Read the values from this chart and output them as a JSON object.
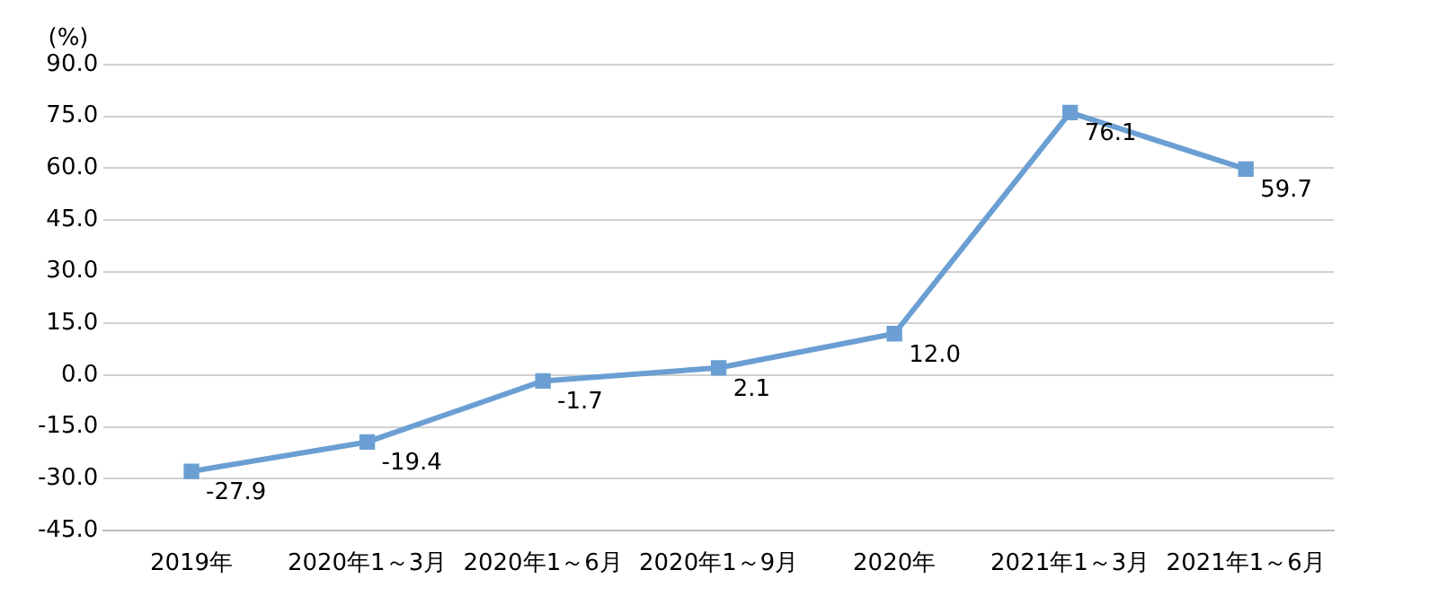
{
  "chart_data": {
    "type": "line",
    "ylabel": "(%)",
    "categories": [
      "2019年",
      "2020年1～3月",
      "2020年1～6月",
      "2020年1～9月",
      "2020年",
      "2021年1～3月",
      "2021年1～6月"
    ],
    "series": [
      {
        "color": "#6b9fd3",
        "values": [
          -27.9,
          -19.4,
          -1.7,
          2.1,
          12.0,
          76.1,
          59.7
        ],
        "value_labels": [
          "-27.9",
          "-19.4",
          "-1.7",
          "2.1",
          "12.0",
          "76.1",
          "59.7"
        ]
      }
    ],
    "ylim": [
      -45,
      90
    ],
    "yticks": [
      {
        "value": -45,
        "label": "-45.0"
      },
      {
        "value": -30,
        "label": "-30.0"
      },
      {
        "value": -15,
        "label": "-15.0"
      },
      {
        "value": 0,
        "label": "0.0"
      },
      {
        "value": 15,
        "label": "15.0"
      },
      {
        "value": 30,
        "label": "30.0"
      },
      {
        "value": 45,
        "label": "45.0"
      },
      {
        "value": 60,
        "label": "60.0"
      },
      {
        "value": 75,
        "label": "75.0"
      },
      {
        "value": 90,
        "label": "90.0"
      }
    ],
    "grid": "y",
    "marker": "square",
    "line_style": "solid",
    "legend": false
  }
}
